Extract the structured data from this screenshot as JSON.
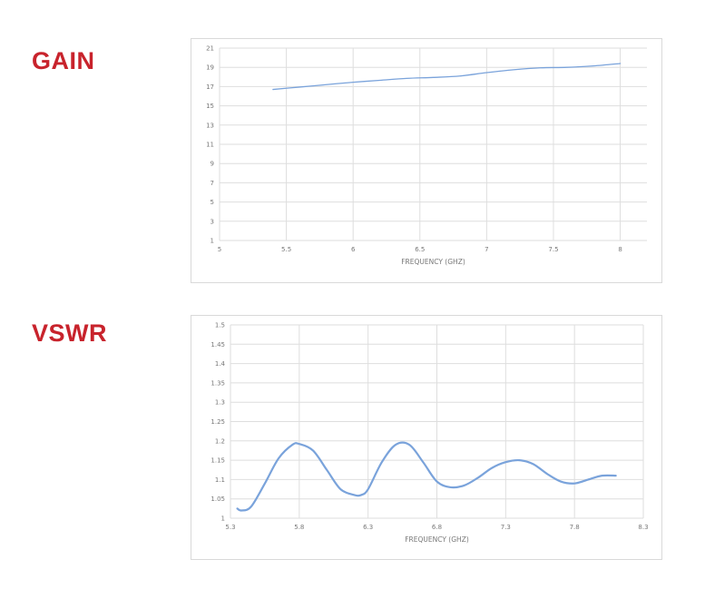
{
  "sections": {
    "gain_title": "GAIN",
    "vswr_title": "VSWR"
  },
  "series_color": "#7aa3db",
  "chart_data": [
    {
      "type": "line",
      "xlabel": "FREQUENCY (GHZ)",
      "ylabel": "",
      "xlim": [
        5,
        8.2
      ],
      "ylim": [
        1,
        21
      ],
      "xticks": [
        5,
        5.5,
        6,
        6.5,
        7,
        7.5,
        8
      ],
      "xtick_labels": [
        "5",
        "5.5",
        "6",
        "6.5",
        "7",
        "7.5",
        "8"
      ],
      "yticks": [
        1,
        3,
        5,
        7,
        9,
        11,
        13,
        15,
        17,
        19,
        21
      ],
      "ytick_labels": [
        "1",
        "3",
        "5",
        "7",
        "9",
        "11",
        "13",
        "15",
        "17",
        "19",
        "21"
      ],
      "grid": true,
      "series": [
        {
          "x": [
            5.4,
            5.6,
            5.8,
            6.0,
            6.2,
            6.4,
            6.6,
            6.8,
            7.0,
            7.2,
            7.4,
            7.6,
            7.8,
            8.0
          ],
          "y": [
            16.7,
            16.95,
            17.2,
            17.45,
            17.65,
            17.85,
            17.95,
            18.1,
            18.45,
            18.75,
            18.95,
            19.0,
            19.15,
            19.4
          ]
        }
      ]
    },
    {
      "type": "line",
      "xlabel": "FREQUENCY (GHZ)",
      "ylabel": "",
      "xlim": [
        5.3,
        8.3
      ],
      "ylim": [
        1,
        1.5
      ],
      "xticks": [
        5.3,
        5.8,
        6.3,
        6.8,
        7.3,
        7.8,
        8.3
      ],
      "xtick_labels": [
        "5.3",
        "5.8",
        "6.3",
        "6.8",
        "7.3",
        "7.8",
        "8.3"
      ],
      "yticks": [
        1,
        1.05,
        1.1,
        1.15,
        1.2,
        1.25,
        1.3,
        1.35,
        1.4,
        1.45,
        1.5
      ],
      "ytick_labels": [
        "1",
        "1.05",
        "1.1",
        "1.15",
        "1.2",
        "1.25",
        "1.3",
        "1.35",
        "1.4",
        "1.45",
        "1.5"
      ],
      "grid": true,
      "series": [
        {
          "x": [
            5.35,
            5.38,
            5.45,
            5.55,
            5.65,
            5.75,
            5.8,
            5.9,
            6.0,
            6.1,
            6.2,
            6.25,
            6.3,
            6.4,
            6.5,
            6.6,
            6.7,
            6.8,
            6.9,
            7.0,
            7.1,
            7.2,
            7.3,
            7.4,
            7.5,
            7.6,
            7.7,
            7.8,
            7.9,
            8.0,
            8.1
          ],
          "y": [
            1.025,
            1.02,
            1.03,
            1.09,
            1.155,
            1.19,
            1.192,
            1.175,
            1.125,
            1.075,
            1.06,
            1.06,
            1.075,
            1.145,
            1.19,
            1.19,
            1.145,
            1.095,
            1.08,
            1.085,
            1.105,
            1.13,
            1.145,
            1.15,
            1.14,
            1.115,
            1.095,
            1.09,
            1.1,
            1.11,
            1.11
          ]
        }
      ]
    }
  ]
}
